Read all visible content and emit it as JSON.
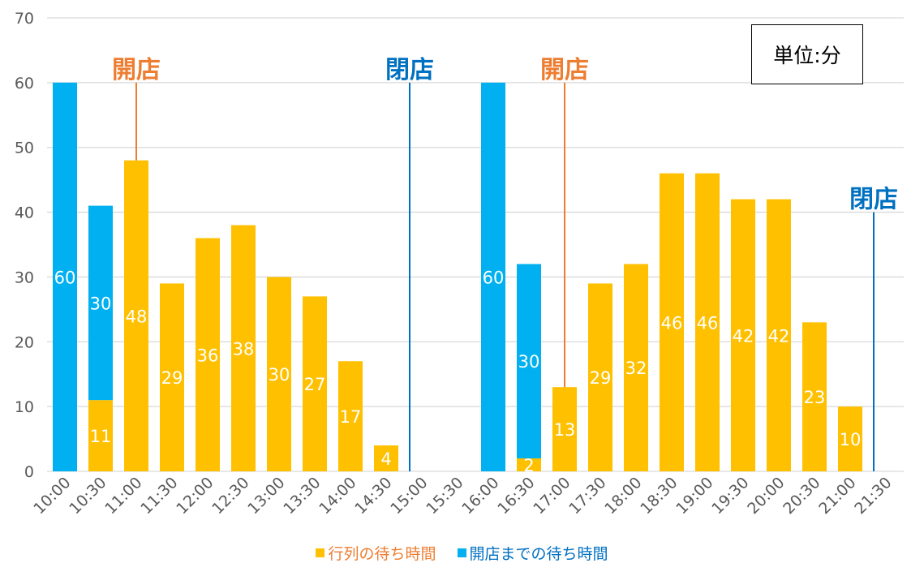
{
  "chart_data": {
    "type": "bar",
    "stacked": true,
    "unit_note": "単位:分",
    "ylim": [
      0,
      70
    ],
    "y_ticks": [
      0,
      10,
      20,
      30,
      40,
      50,
      60,
      70
    ],
    "grid": true,
    "legend_position": "bottom",
    "categories": [
      "10:00",
      "10:30",
      "11:00",
      "11:30",
      "12:00",
      "12:30",
      "13:00",
      "13:30",
      "14:00",
      "14:30",
      "15:00",
      "15:30",
      "16:00",
      "16:30",
      "17:00",
      "17:30",
      "18:00",
      "18:30",
      "19:00",
      "19:30",
      "20:00",
      "20:30",
      "21:00",
      "21:30"
    ],
    "series": [
      {
        "name": "行列の待ち時間",
        "color": "#FFC000",
        "values": [
          0,
          11,
          48,
          29,
          36,
          38,
          30,
          27,
          17,
          4,
          0,
          0,
          0,
          2,
          13,
          29,
          32,
          46,
          46,
          42,
          42,
          23,
          10,
          0
        ],
        "labels": [
          "",
          "11",
          "48",
          "29",
          "36",
          "38",
          "30",
          "27",
          "17",
          "4",
          "",
          "",
          "",
          "2",
          "13",
          "29",
          "32",
          "46",
          "46",
          "42",
          "42",
          "23",
          "10",
          ""
        ]
      },
      {
        "name": "開店までの待ち時間",
        "color": "#00B0F0",
        "values": [
          60,
          30,
          0,
          0,
          0,
          0,
          0,
          0,
          0,
          0,
          0,
          0,
          60,
          30,
          0,
          0,
          0,
          0,
          0,
          0,
          0,
          0,
          0,
          0
        ],
        "labels": [
          "60",
          "30",
          "",
          "",
          "",
          "",
          "",
          "",
          "",
          "",
          "",
          "",
          "60",
          "30",
          "",
          "",
          "",
          "",
          "",
          "",
          "",
          "",
          "",
          ""
        ]
      }
    ],
    "annotations": [
      {
        "text": "開店",
        "color": "#ED7D31",
        "category": "11:00",
        "line_top": 60,
        "line_bottom": 48
      },
      {
        "text": "閉店",
        "color": "#0070C0",
        "category": "15:00",
        "line_top": 60,
        "line_bottom": 0
      },
      {
        "text": "開店",
        "color": "#ED7D31",
        "category": "17:00",
        "line_top": 60,
        "line_bottom": 13
      },
      {
        "text": "閉店",
        "color": "#0070C0",
        "category": "21:30",
        "line_top": 40,
        "line_bottom": 0
      }
    ]
  }
}
